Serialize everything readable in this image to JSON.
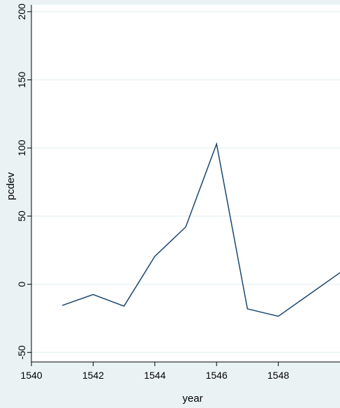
{
  "chart_data": {
    "type": "line",
    "title": "",
    "xlabel": "year",
    "ylabel": "pcdev",
    "xlim": [
      1540,
      1550
    ],
    "ylim": [
      -57,
      205
    ],
    "x_ticks": [
      1540,
      1542,
      1544,
      1546,
      1548
    ],
    "y_ticks": [
      -50,
      0,
      50,
      100,
      150,
      200
    ],
    "grid": true,
    "series": [
      {
        "x": [
          1541,
          1542,
          1543,
          1544,
          1545,
          1546,
          1547,
          1548,
          1549,
          1550
        ],
        "values": [
          -15.5,
          -7.5,
          -16.0,
          20.5,
          42.0,
          103.0,
          -18.0,
          -23.5,
          -7.5,
          8.5
        ]
      }
    ],
    "colors": {
      "line": "#1a476f",
      "plot_background": "#ffffff",
      "page_background": "#eaf2f3",
      "grid": "#eaf2f3"
    }
  }
}
